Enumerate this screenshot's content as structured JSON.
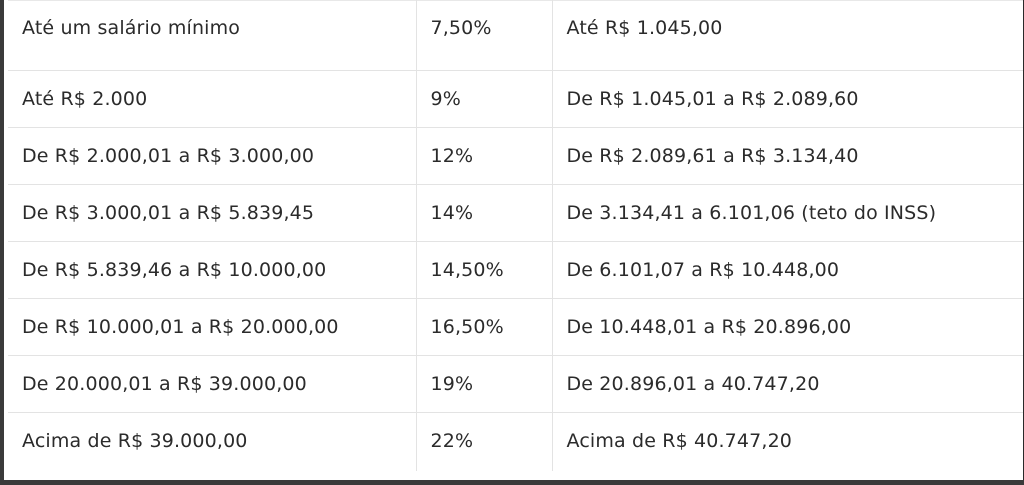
{
  "table": {
    "rows": [
      {
        "range_old": "Até um salário mínimo",
        "rate": "7,50%",
        "range_new": "Até R$ 1.045,00"
      },
      {
        "range_old": "Até R$ 2.000",
        "rate": "9%",
        "range_new": "De R$ 1.045,01 a R$ 2.089,60"
      },
      {
        "range_old": "De R$ 2.000,01 a R$ 3.000,00",
        "rate": "12%",
        "range_new": "De R$ 2.089,61 a R$ 3.134,40"
      },
      {
        "range_old": "De R$ 3.000,01 a R$ 5.839,45",
        "rate": "14%",
        "range_new": "De 3.134,41 a 6.101,06 (teto do INSS)"
      },
      {
        "range_old": "De R$ 5.839,46 a R$ 10.000,00",
        "rate": "14,50%",
        "range_new": "De 6.101,07 a R$ 10.448,00"
      },
      {
        "range_old": "De R$ 10.000,01 a R$ 20.000,00",
        "rate": "16,50%",
        "range_new": "De 10.448,01 a R$ 20.896,00"
      },
      {
        "range_old": "De 20.000,01 a R$ 39.000,00",
        "rate": "19%",
        "range_new": "De 20.896,01 a 40.747,20"
      },
      {
        "range_old": "Acima de R$ 39.000,00",
        "rate": "22%",
        "range_new": "Acima de R$ 40.747,20"
      }
    ]
  }
}
